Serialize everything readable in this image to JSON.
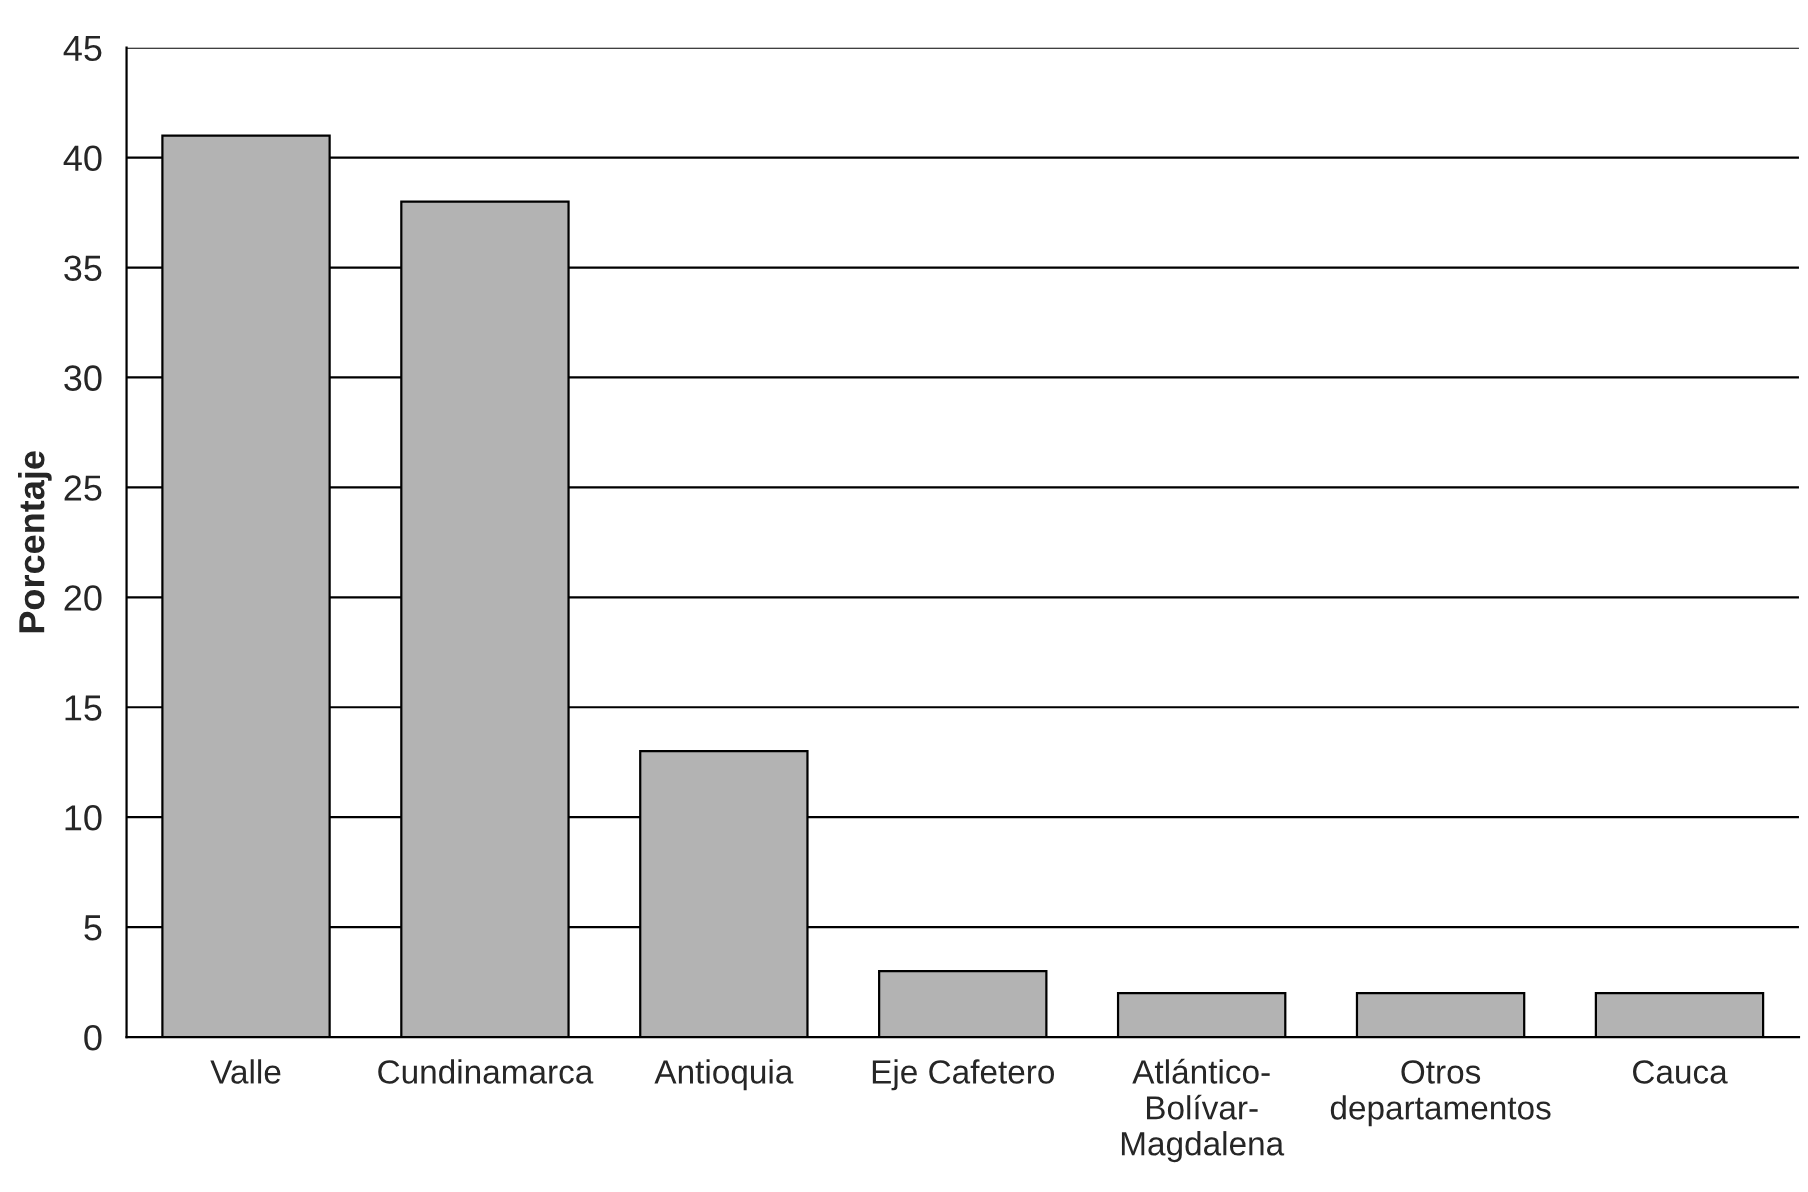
{
  "chart_data": {
    "type": "bar",
    "ylabel": "Porcentaje",
    "categories": [
      "Valle",
      "Cundinamarca",
      "Antioquia",
      "Eje Cafetero",
      "Atlántico-\nBolívar-\nMagdalena",
      "Otros\ndepartamentos",
      "Cauca"
    ],
    "values": [
      41,
      38,
      13,
      3,
      2,
      2,
      2
    ],
    "color": "#b3b3b3",
    "ylim": [
      0,
      45
    ],
    "yticks": [
      0,
      5,
      10,
      15,
      20,
      25,
      30,
      35,
      40,
      45
    ],
    "grid": "y"
  }
}
